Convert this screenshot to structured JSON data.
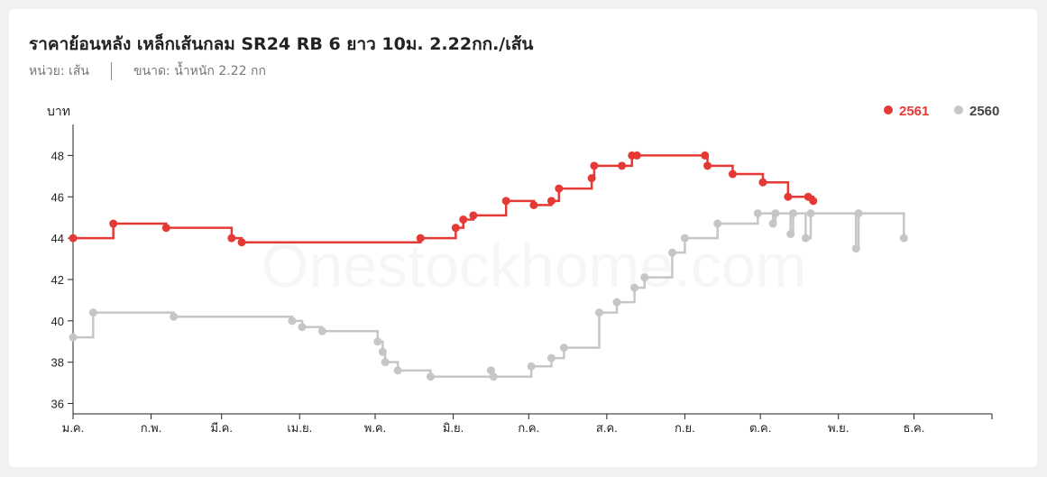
{
  "header": {
    "title": "ราคาย้อนหลัง เหล็กเส้นกลม SR24 RB 6 ยาว 10ม. 2.22กก./เส้น",
    "unit_text": "หน่วย: เส้น",
    "size_text": "ขนาด: น้ำหนัก 2.22 กก"
  },
  "watermark": "Onestockhome.com",
  "chart_data": {
    "type": "line",
    "step": true,
    "ylabel": "บาท",
    "ylim": [
      35.5,
      49.5
    ],
    "yticks": [
      36,
      38,
      40,
      42,
      44,
      46,
      48
    ],
    "months": [
      "ม.ค.",
      "ก.พ.",
      "มี.ค.",
      "เม.ย.",
      "พ.ค.",
      "มิ.ย.",
      "ก.ค.",
      "ส.ค.",
      "ก.ย.",
      "ต.ค.",
      "พ.ย.",
      "ธ.ค."
    ],
    "legend_position": "top-right",
    "series": [
      {
        "name": "2561",
        "color": "#e53935",
        "points": [
          [
            "01-01",
            44.0
          ],
          [
            "01-17",
            44.7
          ],
          [
            "02-07",
            44.5
          ],
          [
            "03-05",
            44.0
          ],
          [
            "03-09",
            43.8
          ],
          [
            "05-19",
            44.0
          ],
          [
            "06-02",
            44.5
          ],
          [
            "06-05",
            44.9
          ],
          [
            "06-09",
            45.1
          ],
          [
            "06-22",
            45.8
          ],
          [
            "07-03",
            45.6
          ],
          [
            "07-10",
            45.8
          ],
          [
            "07-13",
            46.4
          ],
          [
            "07-26",
            46.9
          ],
          [
            "07-27",
            47.5
          ],
          [
            "08-07",
            47.5
          ],
          [
            "08-11",
            48.0
          ],
          [
            "08-13",
            48.0
          ],
          [
            "09-09",
            48.0
          ],
          [
            "09-10",
            47.5
          ],
          [
            "09-20",
            47.1
          ],
          [
            "10-02",
            46.7
          ],
          [
            "10-12",
            46.0
          ],
          [
            "10-20",
            46.0
          ],
          [
            "10-22",
            45.8
          ]
        ]
      },
      {
        "name": "2560",
        "color": "#c6c6c6",
        "points": [
          [
            "01-01",
            39.2
          ],
          [
            "01-09",
            40.4
          ],
          [
            "02-10",
            40.2
          ],
          [
            "03-29",
            40.0
          ],
          [
            "04-02",
            39.7
          ],
          [
            "04-10",
            39.5
          ],
          [
            "05-02",
            39.0
          ],
          [
            "05-04",
            38.5
          ],
          [
            "05-05",
            38.0
          ],
          [
            "05-10",
            37.6
          ],
          [
            "05-23",
            37.3
          ],
          [
            "06-16",
            37.6
          ],
          [
            "06-17",
            37.3
          ],
          [
            "07-02",
            37.8
          ],
          [
            "07-10",
            38.2
          ],
          [
            "07-15",
            38.7
          ],
          [
            "07-29",
            40.4
          ],
          [
            "08-05",
            40.9
          ],
          [
            "08-12",
            41.6
          ],
          [
            "08-16",
            42.1
          ],
          [
            "08-27",
            43.3
          ],
          [
            "09-01",
            44.0
          ],
          [
            "09-14",
            44.7
          ],
          [
            "09-30",
            45.2
          ],
          [
            "10-06",
            44.7
          ],
          [
            "10-07",
            45.2
          ],
          [
            "10-13",
            44.2
          ],
          [
            "10-14",
            45.2
          ],
          [
            "10-19",
            44.0
          ],
          [
            "10-21",
            45.2
          ],
          [
            "11-08",
            43.5
          ],
          [
            "11-09",
            45.2
          ],
          [
            "11-27",
            44.0
          ]
        ]
      }
    ]
  }
}
